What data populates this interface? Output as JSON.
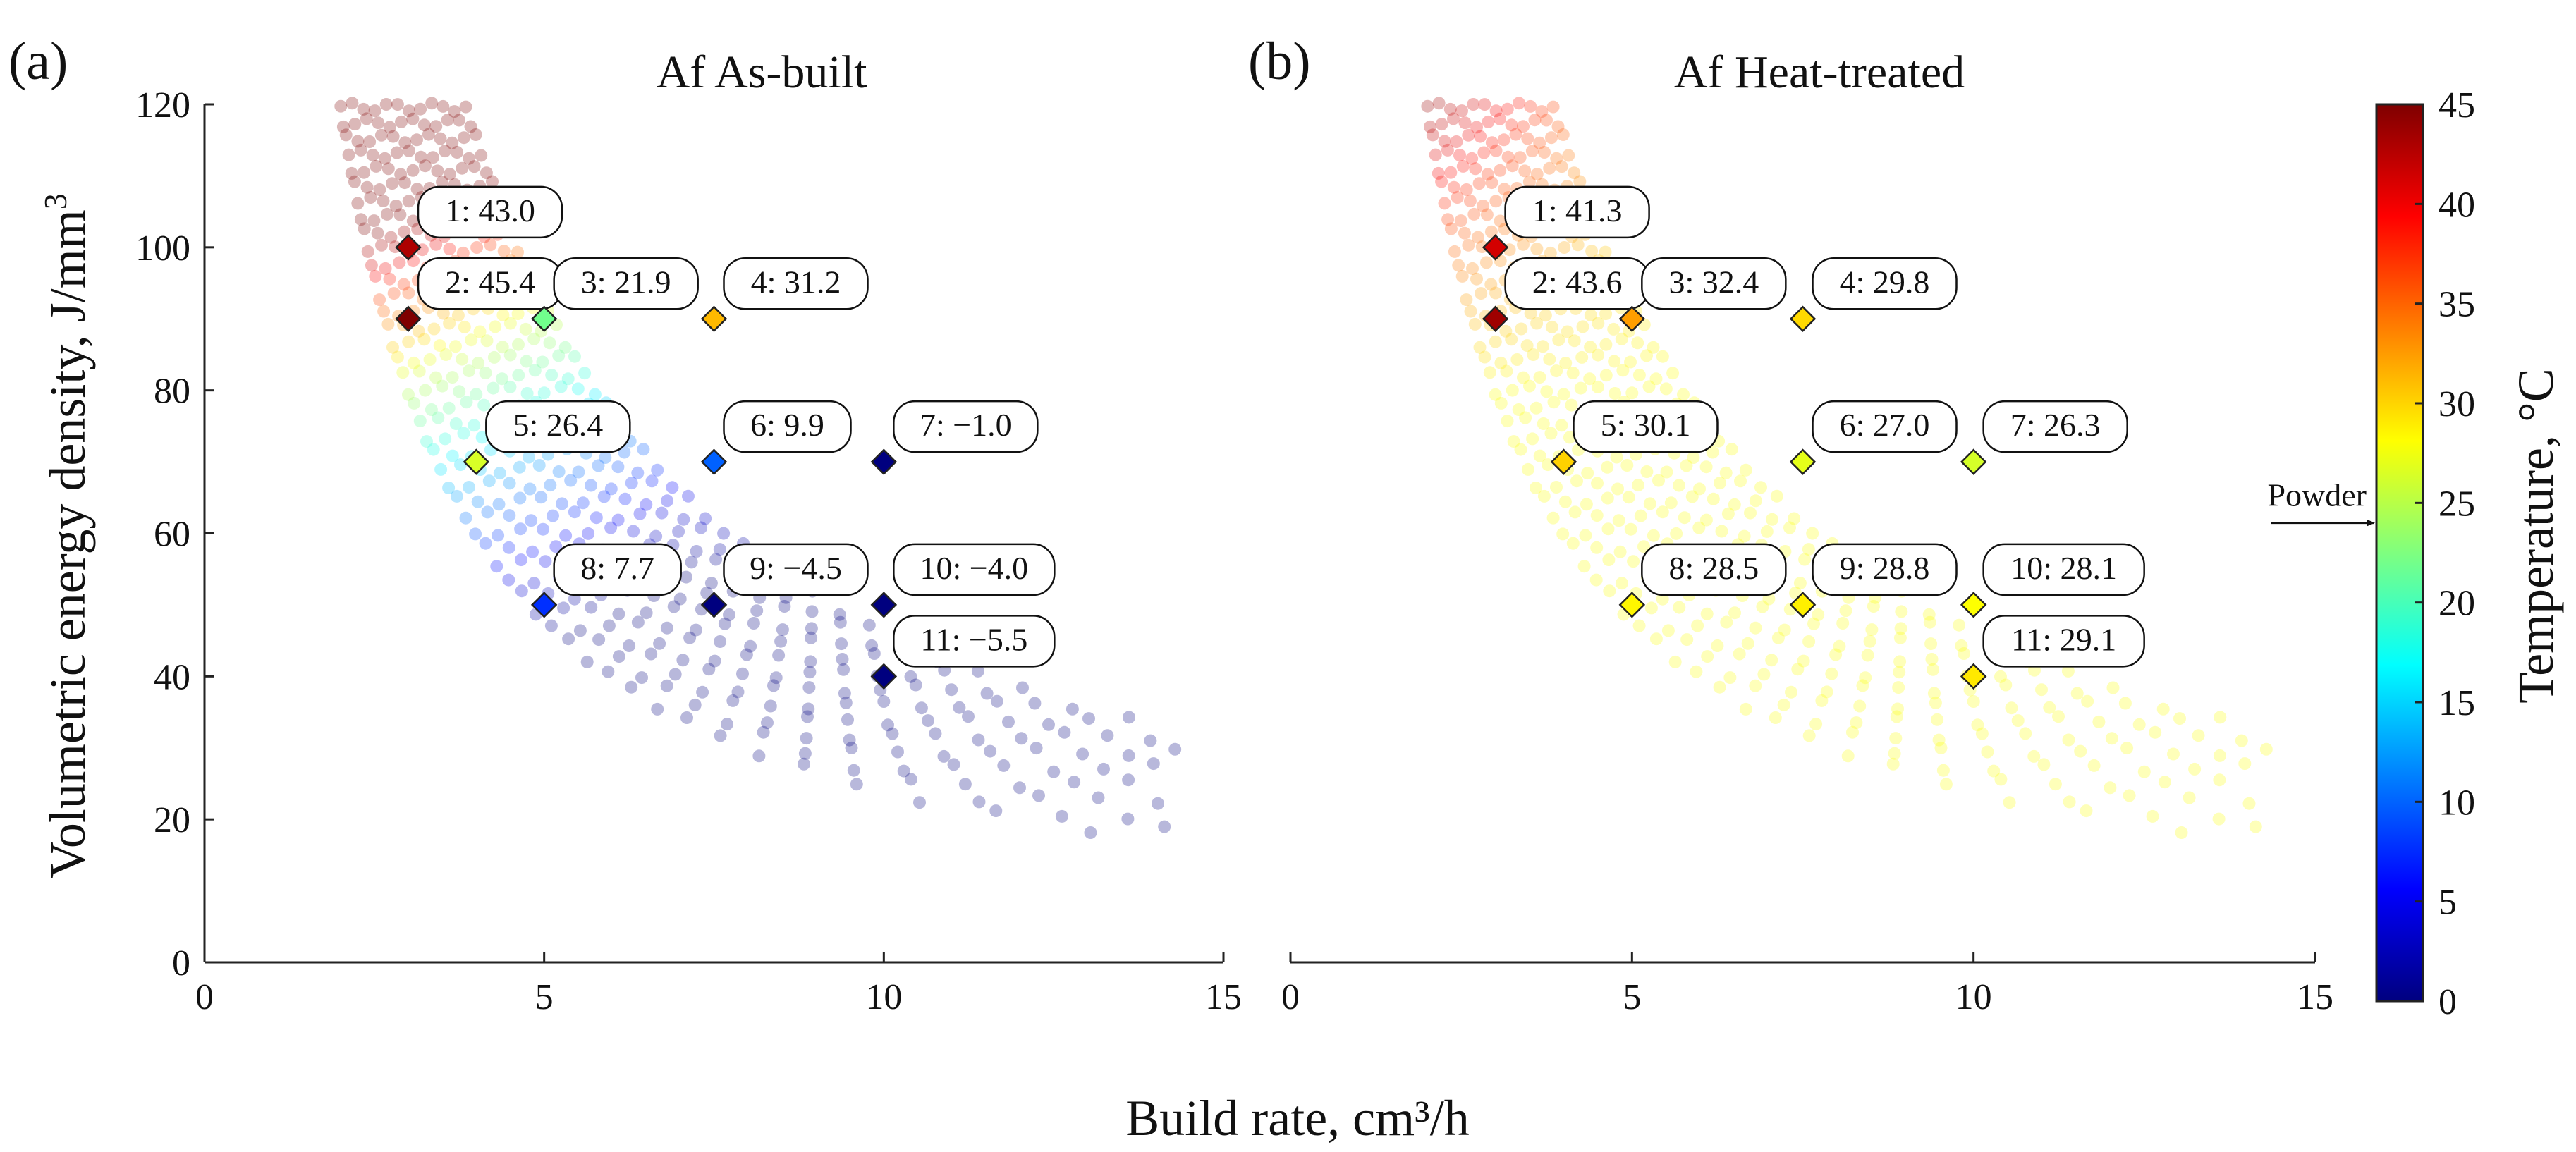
{
  "chart_data": [
    {
      "type": "scatter",
      "panel_label": "(a)",
      "title": "Af As-built",
      "xlabel": "",
      "ylabel": "Volumetric energy density, J/mm",
      "ylabel_superscript": "3",
      "xlim": [
        0,
        15
      ],
      "ylim": [
        0,
        120
      ],
      "xticks": [
        "0",
        "5",
        "10",
        "15"
      ],
      "yticks": [
        "0",
        "20",
        "40",
        "60",
        "80",
        "100",
        "120"
      ],
      "points": [
        {
          "id": 1,
          "x": 3,
          "y": 100,
          "value": 43.0,
          "label": "1: 43.0"
        },
        {
          "id": 2,
          "x": 3,
          "y": 90,
          "value": 45.4,
          "label": "2: 45.4"
        },
        {
          "id": 3,
          "x": 5,
          "y": 90,
          "value": 21.9,
          "label": "3: 21.9"
        },
        {
          "id": 4,
          "x": 7.5,
          "y": 90,
          "value": 31.2,
          "label": "4: 31.2"
        },
        {
          "id": 5,
          "x": 4,
          "y": 70,
          "value": 26.4,
          "label": "5: 26.4"
        },
        {
          "id": 6,
          "x": 7.5,
          "y": 70,
          "value": 9.9,
          "label": "6: 9.9"
        },
        {
          "id": 7,
          "x": 10,
          "y": 70,
          "value": -1.0,
          "label": "7: −1.0"
        },
        {
          "id": 8,
          "x": 5,
          "y": 50,
          "value": 7.7,
          "label": "8: 7.7"
        },
        {
          "id": 9,
          "x": 7.5,
          "y": 50,
          "value": -4.5,
          "label": "9: −4.5"
        },
        {
          "id": 10,
          "x": 10,
          "y": 50,
          "value": -4.0,
          "label": "10: −4.0"
        },
        {
          "id": 11,
          "x": 10,
          "y": 40,
          "value": -5.5,
          "label": "11: −5.5"
        }
      ]
    },
    {
      "type": "scatter",
      "panel_label": "(b)",
      "title": "Af Heat-treated",
      "xlabel": "",
      "ylabel": "",
      "xlim": [
        0,
        15
      ],
      "ylim": [
        0,
        120
      ],
      "xticks": [
        "0",
        "5",
        "10",
        "15"
      ],
      "points": [
        {
          "id": 1,
          "x": 3,
          "y": 100,
          "value": 41.3,
          "label": "1: 41.3"
        },
        {
          "id": 2,
          "x": 3,
          "y": 90,
          "value": 43.6,
          "label": "2: 43.6"
        },
        {
          "id": 3,
          "x": 5,
          "y": 90,
          "value": 32.4,
          "label": "3: 32.4"
        },
        {
          "id": 4,
          "x": 7.5,
          "y": 90,
          "value": 29.8,
          "label": "4: 29.8"
        },
        {
          "id": 5,
          "x": 4,
          "y": 70,
          "value": 30.1,
          "label": "5: 30.1"
        },
        {
          "id": 6,
          "x": 7.5,
          "y": 70,
          "value": 27.0,
          "label": "6: 27.0"
        },
        {
          "id": 7,
          "x": 10,
          "y": 70,
          "value": 26.3,
          "label": "7: 26.3"
        },
        {
          "id": 8,
          "x": 5,
          "y": 50,
          "value": 28.5,
          "label": "8: 28.5"
        },
        {
          "id": 9,
          "x": 7.5,
          "y": 50,
          "value": 28.8,
          "label": "9: 28.8"
        },
        {
          "id": 10,
          "x": 10,
          "y": 50,
          "value": 28.1,
          "label": "10: 28.1"
        },
        {
          "id": 11,
          "x": 10,
          "y": 40,
          "value": 29.1,
          "label": "11: 29.1"
        }
      ]
    }
  ],
  "shared_xlabel": "Build rate, cm³/h",
  "colorbar": {
    "label": "Temperature, °C",
    "min": 0,
    "max": 45,
    "ticks": [
      "0",
      "5",
      "10",
      "15",
      "20",
      "25",
      "30",
      "35",
      "40",
      "45"
    ],
    "colormap": "jet",
    "marker_label": "Powder",
    "marker_value": 24
  },
  "colors": {
    "axis": "#222222",
    "jet_stops": [
      "#00007f",
      "#0000ff",
      "#007fff",
      "#00ffff",
      "#7fff7f",
      "#ffff00",
      "#ff7f00",
      "#ff0000",
      "#7f0000"
    ]
  }
}
